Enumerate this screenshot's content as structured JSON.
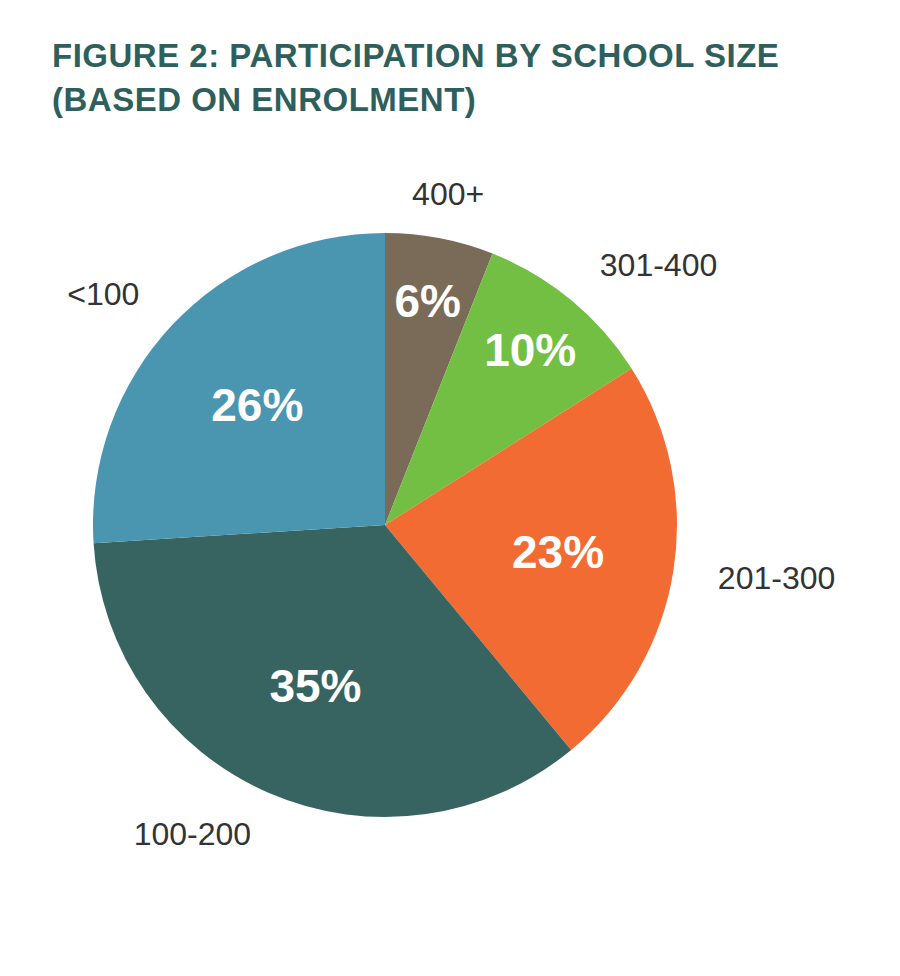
{
  "chart_data": {
    "type": "pie",
    "title": "FIGURE 2: PARTICIPATION BY SCHOOL SIZE (BASED ON ENROLMENT)",
    "categories": [
      "400+",
      "301-400",
      "201-300",
      "100-200",
      "<100"
    ],
    "values": [
      6,
      10,
      23,
      35,
      26
    ],
    "value_labels": [
      "6%",
      "10%",
      "23%",
      "35%",
      "26%"
    ],
    "colors": [
      "#7a6a58",
      "#72bf44",
      "#f26b33",
      "#376461",
      "#4a96b0"
    ],
    "data_labels": true
  }
}
